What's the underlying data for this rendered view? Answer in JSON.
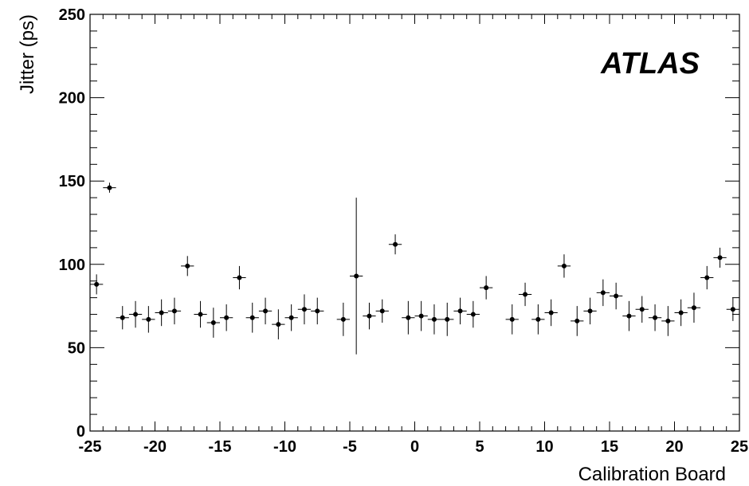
{
  "chart_data": {
    "type": "scatter",
    "xlabel": "Calibration Board",
    "ylabel": "Jitter (ps)",
    "annotation": "ATLAS",
    "xlim": [
      -25,
      25
    ],
    "ylim": [
      0,
      250
    ],
    "x_ticks": [
      -25,
      -20,
      -15,
      -10,
      -5,
      0,
      5,
      10,
      15,
      20,
      25
    ],
    "y_ticks": [
      0,
      50,
      100,
      150,
      200,
      250
    ],
    "grid": false,
    "x_half_width": 0.5,
    "series": [
      {
        "points": [
          {
            "x": -24.5,
            "y": 88,
            "err": 6
          },
          {
            "x": -23.5,
            "y": 146,
            "err": 3
          },
          {
            "x": -22.5,
            "y": 68,
            "err": 7
          },
          {
            "x": -21.5,
            "y": 70,
            "err": 8
          },
          {
            "x": -20.5,
            "y": 67,
            "err": 8
          },
          {
            "x": -19.5,
            "y": 71,
            "err": 8
          },
          {
            "x": -18.5,
            "y": 72,
            "err": 8
          },
          {
            "x": -17.5,
            "y": 99,
            "err": 6
          },
          {
            "x": -16.5,
            "y": 70,
            "err": 8
          },
          {
            "x": -15.5,
            "y": 65,
            "err": 9
          },
          {
            "x": -14.5,
            "y": 68,
            "err": 8
          },
          {
            "x": -13.5,
            "y": 92,
            "err": 7
          },
          {
            "x": -12.5,
            "y": 68,
            "err": 9
          },
          {
            "x": -11.5,
            "y": 72,
            "err": 8
          },
          {
            "x": -10.5,
            "y": 64,
            "err": 9
          },
          {
            "x": -9.5,
            "y": 68,
            "err": 8
          },
          {
            "x": -8.5,
            "y": 73,
            "err": 9
          },
          {
            "x": -7.5,
            "y": 72,
            "err": 8
          },
          {
            "x": -5.5,
            "y": 67,
            "err": 10
          },
          {
            "x": -4.5,
            "y": 93,
            "err": 47
          },
          {
            "x": -3.5,
            "y": 69,
            "err": 8
          },
          {
            "x": -2.5,
            "y": 72,
            "err": 7
          },
          {
            "x": -1.5,
            "y": 112,
            "err": 6
          },
          {
            "x": -0.5,
            "y": 68,
            "err": 10
          },
          {
            "x": 0.5,
            "y": 69,
            "err": 9
          },
          {
            "x": 1.5,
            "y": 67,
            "err": 9
          },
          {
            "x": 2.5,
            "y": 67,
            "err": 10
          },
          {
            "x": 3.5,
            "y": 72,
            "err": 8
          },
          {
            "x": 4.5,
            "y": 70,
            "err": 8
          },
          {
            "x": 5.5,
            "y": 86,
            "err": 7
          },
          {
            "x": 7.5,
            "y": 67,
            "err": 9
          },
          {
            "x": 8.5,
            "y": 82,
            "err": 7
          },
          {
            "x": 9.5,
            "y": 67,
            "err": 9
          },
          {
            "x": 10.5,
            "y": 71,
            "err": 8
          },
          {
            "x": 11.5,
            "y": 99,
            "err": 7
          },
          {
            "x": 12.5,
            "y": 66,
            "err": 9
          },
          {
            "x": 13.5,
            "y": 72,
            "err": 8
          },
          {
            "x": 14.5,
            "y": 83,
            "err": 8
          },
          {
            "x": 15.5,
            "y": 81,
            "err": 8
          },
          {
            "x": 16.5,
            "y": 69,
            "err": 9
          },
          {
            "x": 17.5,
            "y": 73,
            "err": 8
          },
          {
            "x": 18.5,
            "y": 68,
            "err": 8
          },
          {
            "x": 19.5,
            "y": 66,
            "err": 9
          },
          {
            "x": 20.5,
            "y": 71,
            "err": 8
          },
          {
            "x": 21.5,
            "y": 74,
            "err": 9
          },
          {
            "x": 22.5,
            "y": 92,
            "err": 7
          },
          {
            "x": 23.5,
            "y": 104,
            "err": 6
          },
          {
            "x": 24.5,
            "y": 73,
            "err": 7
          }
        ]
      }
    ]
  }
}
